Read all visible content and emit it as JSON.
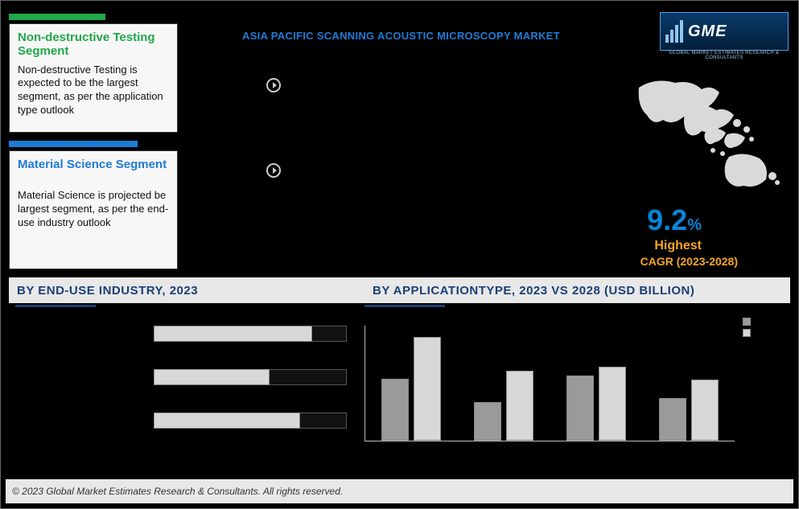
{
  "header": {
    "main_title": "ASIA PACIFIC SCANNING ACOUSTIC MICROSCOPY MARKET",
    "logo_text": "GME",
    "logo_sub": "GLOBAL MARKET ESTIMATES RESEARCH & CONSULTANTS"
  },
  "card1": {
    "accent_color": "#21a84a",
    "title_color": "#21a84a",
    "title": "Non-destructive Testing Segment",
    "body": "Non-destructive Testing is expected to be the largest segment, as per the application type outlook"
  },
  "card2": {
    "accent_color": "#1f7bd6",
    "title_color": "#1f7bd6",
    "title": "Material Science Segment",
    "body": "Material Science is projected be largest segment, as per the end-use industry outlook"
  },
  "cagr": {
    "value": "9.2",
    "pct": "%",
    "label1": "Highest",
    "label2": "CAGR (2023-2028)",
    "value_color": "#0a84d6",
    "label_color": "#f5a623"
  },
  "sections": {
    "left": "BY  END-USE INDUSTRY, 2023",
    "right": "BY APPLICATIONTYPE, 2023 VS 2028 (USD BILLION)",
    "title_color": "#1a3f78"
  },
  "enduse_chart": {
    "type": "horizontal-bar",
    "track_width_pct": 100,
    "bar_color": "#d8d8d8",
    "remainder_color": "#111111",
    "rows": [
      {
        "label": "",
        "fill_pct": 82
      },
      {
        "label": "",
        "fill_pct": 60
      },
      {
        "label": "",
        "fill_pct": 76
      }
    ]
  },
  "apptype_chart": {
    "type": "grouped-bar",
    "series_a_color": "#9a9a9a",
    "series_b_color": "#d8d8d8",
    "ymax": 100,
    "legend": [
      {
        "swatch": "#9a9a9a",
        "label": ""
      },
      {
        "swatch": "#d8d8d8",
        "label": ""
      }
    ],
    "groups": [
      {
        "label": "",
        "a": 55,
        "b": 92
      },
      {
        "label": "",
        "a": 34,
        "b": 62
      },
      {
        "label": "",
        "a": 58,
        "b": 66
      },
      {
        "label": "",
        "a": 38,
        "b": 54
      }
    ]
  },
  "footer": {
    "text": "© 2023 Global Market Estimates Research & Consultants. All rights reserved."
  }
}
